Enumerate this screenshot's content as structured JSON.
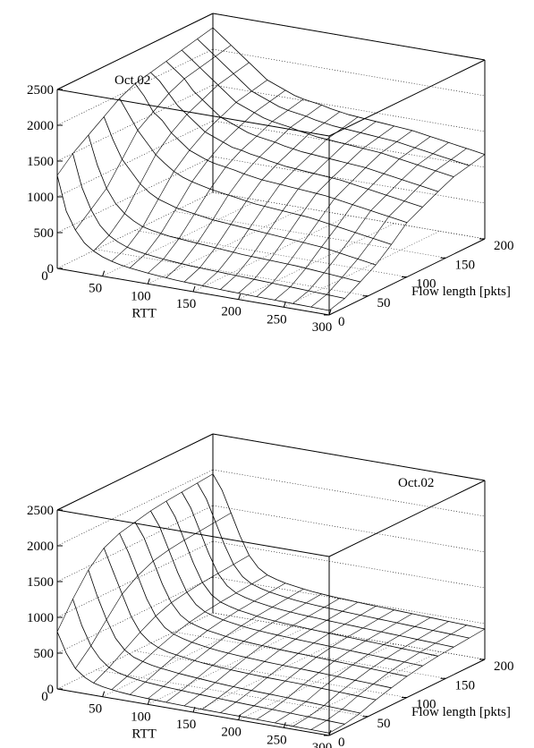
{
  "chart_data": [
    {
      "type": "surface3d",
      "title": "Oct.02",
      "xlabel": "RTT",
      "ylabel": "Flow length [pkts]",
      "zlabel": "",
      "x_ticks": [
        "50",
        "100",
        "150",
        "200",
        "250",
        "300"
      ],
      "y_ticks": [
        "0",
        "50",
        "100",
        "150",
        "200"
      ],
      "z_ticks": [
        "0",
        "500",
        "1000",
        "1500",
        "2000",
        "2500"
      ],
      "x_origin_label": "0",
      "xlim": [
        0,
        300
      ],
      "ylim": [
        0,
        200
      ],
      "zlim": [
        0,
        2500
      ],
      "grid": true,
      "series": [
        {
          "y": 0,
          "z": [
            1300,
            820,
            580,
            420,
            330,
            270,
            230,
            200,
            180,
            165,
            150,
            140,
            130,
            120,
            115,
            110,
            105,
            100,
            95,
            90,
            88,
            85,
            82,
            80,
            78,
            75,
            72,
            70,
            68,
            65,
            62
          ]
        },
        {
          "y": 20,
          "z": [
            1500,
            1050,
            760,
            560,
            440,
            370,
            320,
            290,
            270,
            255,
            240,
            230,
            220,
            210,
            205,
            200,
            195,
            190,
            185,
            180,
            175,
            170,
            165,
            160,
            155,
            150,
            145,
            140,
            135,
            130,
            125
          ]
        },
        {
          "y": 40,
          "z": [
            1650,
            1250,
            950,
            760,
            640,
            560,
            500,
            470,
            450,
            430,
            420,
            410,
            400,
            390,
            380,
            370,
            360,
            350,
            345,
            340,
            335,
            330,
            325,
            320,
            310,
            300,
            290,
            280,
            270,
            260,
            250
          ]
        },
        {
          "y": 60,
          "z": [
            1800,
            1500,
            1250,
            1100,
            950,
            850,
            780,
            740,
            700,
            680,
            660,
            640,
            620,
            610,
            600,
            590,
            580,
            570,
            560,
            550,
            540,
            530,
            520,
            510,
            500,
            480,
            460,
            440,
            420,
            400,
            380
          ]
        },
        {
          "y": 80,
          "z": [
            1950,
            1750,
            1550,
            1400,
            1250,
            1150,
            1060,
            1000,
            960,
            930,
            900,
            880,
            860,
            840,
            820,
            800,
            790,
            780,
            770,
            760,
            750,
            740,
            720,
            700,
            680,
            660,
            640,
            620,
            600,
            580,
            560
          ]
        },
        {
          "y": 100,
          "z": [
            2050,
            1900,
            1700,
            1600,
            1450,
            1350,
            1250,
            1200,
            1150,
            1120,
            1100,
            1080,
            1050,
            1030,
            1010,
            1000,
            990,
            980,
            970,
            960,
            950,
            940,
            920,
            900,
            880,
            860,
            840,
            820,
            800,
            780,
            760
          ]
        },
        {
          "y": 120,
          "z": [
            2100,
            2000,
            1850,
            1700,
            1600,
            1500,
            1400,
            1350,
            1300,
            1250,
            1230,
            1200,
            1180,
            1150,
            1130,
            1110,
            1100,
            1090,
            1080,
            1070,
            1060,
            1050,
            1030,
            1010,
            990,
            970,
            950,
            930,
            910,
            890,
            870
          ]
        },
        {
          "y": 140,
          "z": [
            2150,
            2050,
            1950,
            1800,
            1700,
            1600,
            1500,
            1450,
            1400,
            1350,
            1320,
            1300,
            1280,
            1250,
            1230,
            1210,
            1200,
            1190,
            1180,
            1170,
            1160,
            1150,
            1140,
            1120,
            1100,
            1080,
            1060,
            1040,
            1020,
            1000,
            980
          ]
        },
        {
          "y": 160,
          "z": [
            2200,
            2100,
            2000,
            1900,
            1800,
            1700,
            1600,
            1550,
            1500,
            1450,
            1420,
            1400,
            1380,
            1350,
            1330,
            1310,
            1300,
            1290,
            1280,
            1270,
            1260,
            1250,
            1240,
            1220,
            1200,
            1180,
            1160,
            1140,
            1120,
            1100,
            1080
          ]
        },
        {
          "y": 180,
          "z": [
            2250,
            2150,
            2050,
            1950,
            1850,
            1750,
            1650,
            1600,
            1550,
            1500,
            1470,
            1450,
            1430,
            1400,
            1380,
            1360,
            1350,
            1340,
            1330,
            1320,
            1310,
            1300,
            1290,
            1270,
            1250,
            1230,
            1210,
            1190,
            1170,
            1150,
            1130
          ]
        },
        {
          "y": 200,
          "z": [
            2300,
            2200,
            2100,
            2000,
            1900,
            1800,
            1700,
            1650,
            1600,
            1550,
            1520,
            1500,
            1480,
            1450,
            1430,
            1410,
            1400,
            1390,
            1380,
            1370,
            1360,
            1350,
            1340,
            1320,
            1300,
            1280,
            1260,
            1240,
            1220,
            1200,
            1180
          ]
        }
      ]
    },
    {
      "type": "surface3d",
      "title": "Oct.02",
      "xlabel": "RTT",
      "ylabel": "Flow length [pkts]",
      "zlabel": "",
      "x_ticks": [
        "50",
        "100",
        "150",
        "200",
        "250",
        "300"
      ],
      "y_ticks": [
        "0",
        "50",
        "100",
        "150",
        "200"
      ],
      "z_ticks": [
        "0",
        "500",
        "1000",
        "1500",
        "2000",
        "2500"
      ],
      "x_origin_label": "0",
      "xlim": [
        0,
        300
      ],
      "ylim": [
        0,
        200
      ],
      "zlim": [
        0,
        2500
      ],
      "grid": true,
      "series": [
        {
          "y": 0,
          "z": [
            800,
            520,
            330,
            230,
            170,
            140,
            120,
            105,
            95,
            88,
            82,
            78,
            74,
            70,
            67,
            64,
            62,
            60,
            58,
            56,
            54,
            52,
            50,
            48,
            46,
            44,
            42,
            40,
            38,
            36,
            34
          ]
        },
        {
          "y": 20,
          "z": [
            1150,
            800,
            540,
            380,
            280,
            230,
            200,
            180,
            165,
            155,
            145,
            138,
            132,
            126,
            120,
            115,
            110,
            105,
            100,
            96,
            92,
            88,
            84,
            80,
            76,
            72,
            68,
            64,
            60,
            56,
            52
          ]
        },
        {
          "y": 40,
          "z": [
            1450,
            1100,
            800,
            560,
            420,
            340,
            300,
            270,
            250,
            235,
            220,
            210,
            200,
            190,
            180,
            172,
            165,
            160,
            156,
            152,
            148,
            144,
            140,
            135,
            130,
            125,
            120,
            115,
            110,
            105,
            100
          ]
        },
        {
          "y": 60,
          "z": [
            1650,
            1350,
            1050,
            760,
            560,
            450,
            390,
            350,
            330,
            310,
            295,
            280,
            270,
            260,
            252,
            246,
            240,
            235,
            230,
            228,
            226,
            224,
            220,
            215,
            210,
            205,
            200,
            195,
            190,
            185,
            180
          ]
        },
        {
          "y": 80,
          "z": [
            1750,
            1500,
            1200,
            900,
            680,
            540,
            470,
            430,
            400,
            380,
            360,
            345,
            335,
            325,
            318,
            312,
            306,
            300,
            296,
            292,
            288,
            284,
            280,
            275,
            270,
            265,
            260,
            255,
            250,
            245,
            240
          ]
        },
        {
          "y": 100,
          "z": [
            1800,
            1600,
            1300,
            1000,
            760,
            610,
            530,
            490,
            460,
            440,
            420,
            405,
            395,
            385,
            378,
            372,
            366,
            360,
            355,
            350,
            345,
            340,
            335,
            330,
            325,
            320,
            315,
            310,
            305,
            300,
            295
          ]
        },
        {
          "y": 120,
          "z": [
            1850,
            1650,
            1350,
            1050,
            800,
            650,
            570,
            530,
            500,
            480,
            460,
            445,
            435,
            425,
            418,
            412,
            406,
            400,
            395,
            390,
            385,
            380,
            375,
            370,
            365,
            360,
            355,
            350,
            345,
            340,
            335
          ]
        },
        {
          "y": 140,
          "z": [
            1880,
            1680,
            1380,
            1080,
            830,
            680,
            600,
            560,
            530,
            510,
            490,
            475,
            465,
            455,
            448,
            442,
            436,
            430,
            425,
            420,
            415,
            410,
            405,
            400,
            395,
            390,
            385,
            380,
            375,
            370,
            365
          ]
        },
        {
          "y": 160,
          "z": [
            1900,
            1700,
            1400,
            1100,
            850,
            700,
            620,
            580,
            550,
            530,
            510,
            495,
            485,
            475,
            468,
            462,
            456,
            450,
            445,
            440,
            435,
            430,
            425,
            420,
            415,
            410,
            405,
            400,
            395,
            390,
            385
          ]
        },
        {
          "y": 180,
          "z": [
            1920,
            1720,
            1420,
            1120,
            870,
            720,
            640,
            600,
            570,
            550,
            530,
            515,
            505,
            495,
            488,
            482,
            476,
            470,
            465,
            460,
            455,
            450,
            445,
            440,
            435,
            430,
            425,
            420,
            415,
            410,
            405
          ]
        },
        {
          "y": 200,
          "z": [
            1940,
            1740,
            1440,
            1140,
            890,
            740,
            660,
            620,
            590,
            570,
            550,
            535,
            525,
            515,
            508,
            502,
            496,
            490,
            485,
            480,
            475,
            470,
            465,
            460,
            455,
            450,
            445,
            440,
            435,
            430,
            425
          ]
        }
      ]
    }
  ]
}
